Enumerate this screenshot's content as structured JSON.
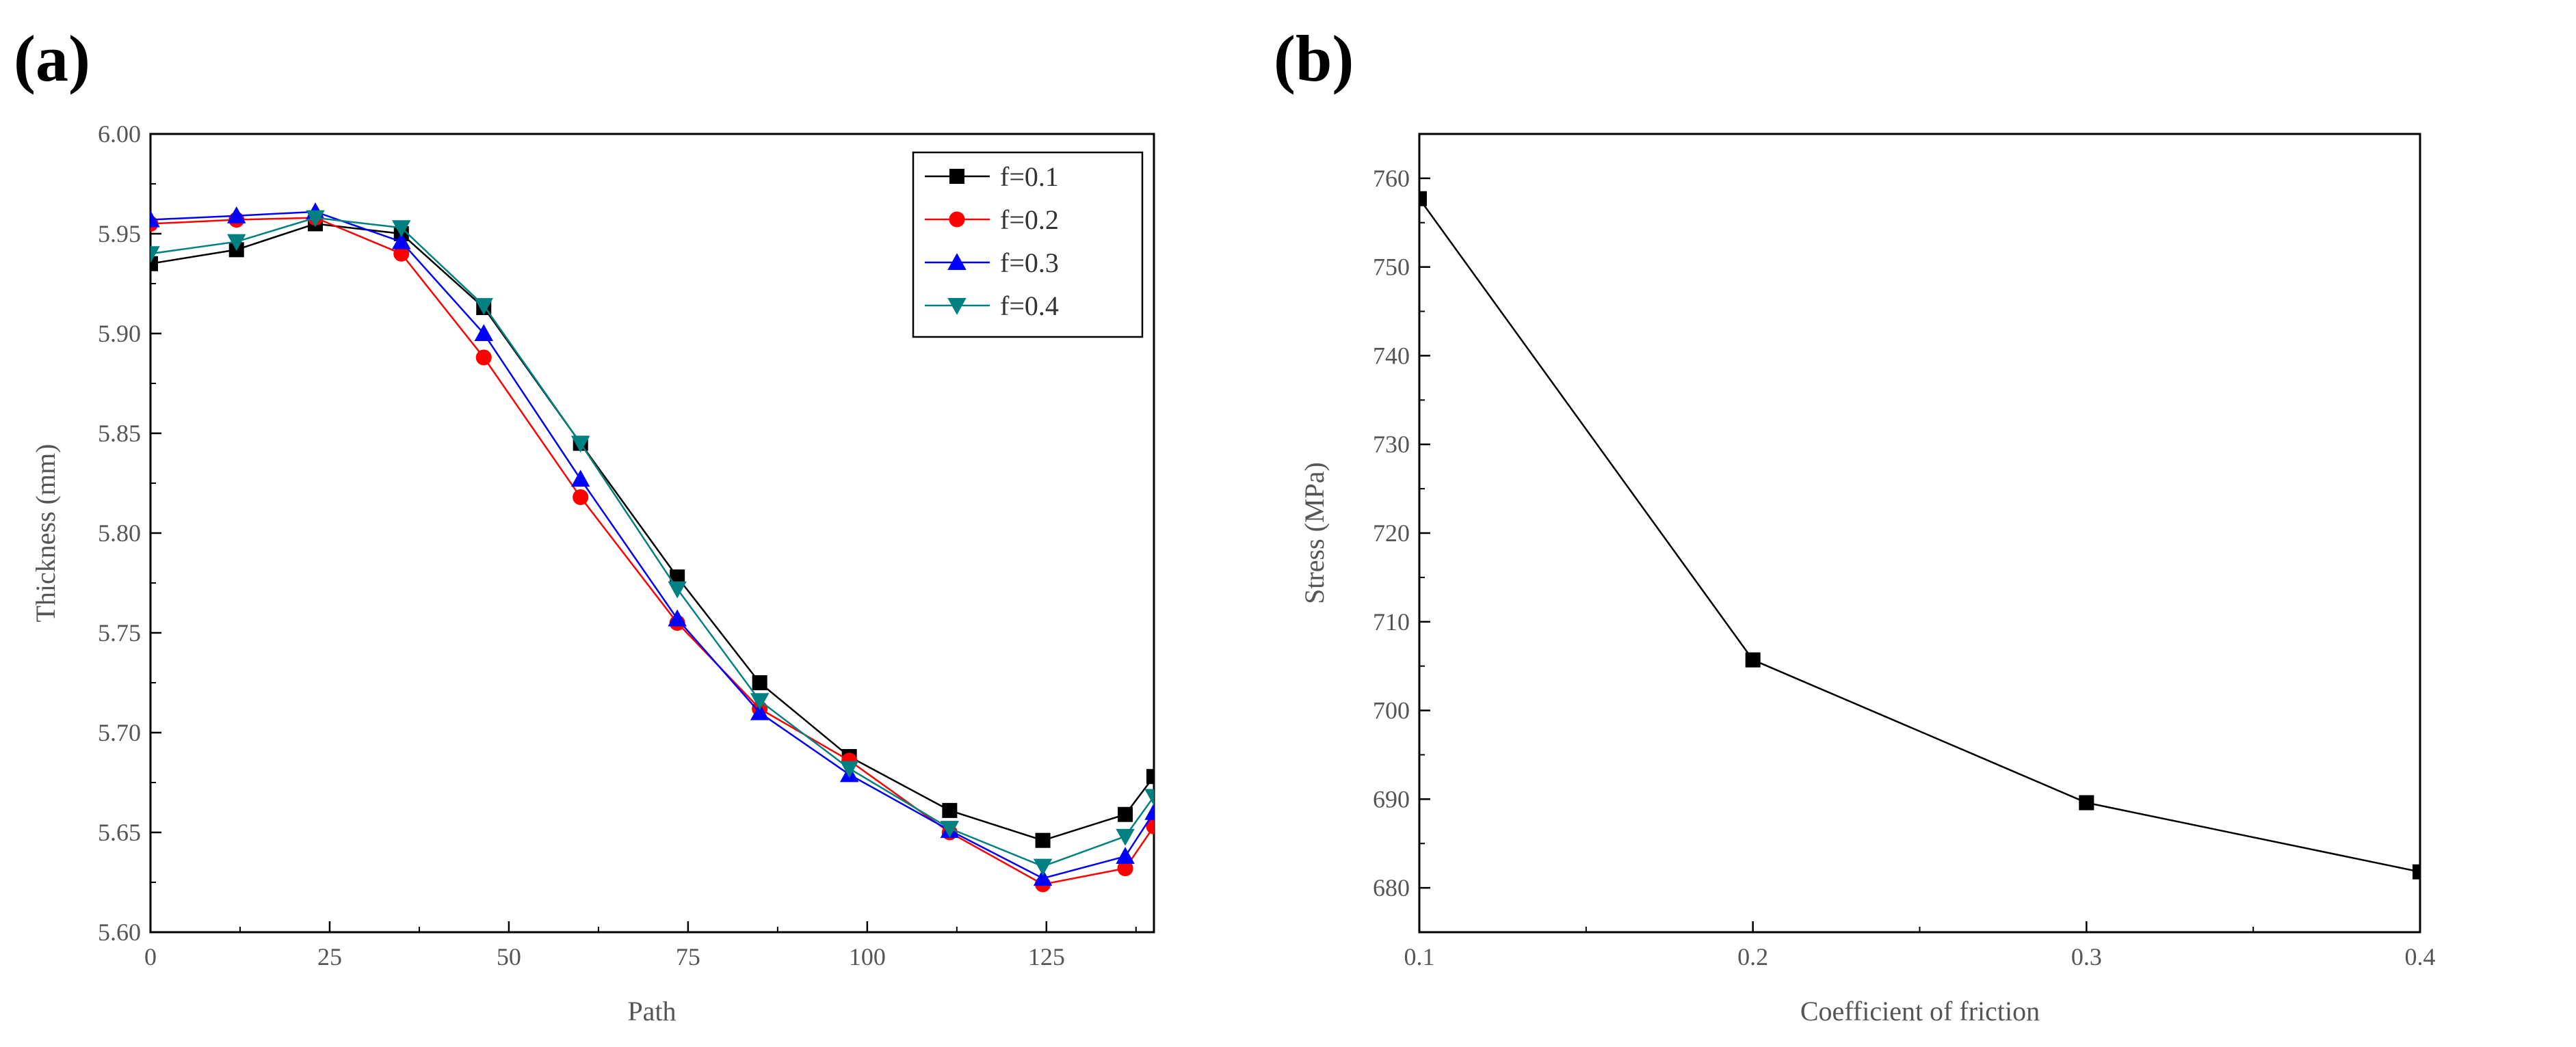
{
  "chart_data": [
    {
      "panel": "(a)",
      "type": "line",
      "title": "",
      "xlabel": "Path",
      "ylabel": "Thickness (mm)",
      "xlim": [
        0,
        140
      ],
      "ylim": [
        5.6,
        6.0
      ],
      "xticks": [
        0,
        25,
        50,
        75,
        100,
        125
      ],
      "xtick_labels": [
        "0",
        "25",
        "50",
        "75",
        "100",
        "125"
      ],
      "yticks": [
        5.6,
        5.65,
        5.7,
        5.75,
        5.8,
        5.85,
        5.9,
        5.95,
        6.0
      ],
      "ytick_labels": [
        "5.60",
        "5.65",
        "5.70",
        "5.75",
        "5.80",
        "5.85",
        "5.90",
        "5.95",
        "6.00"
      ],
      "legend_position": "top-right",
      "x": [
        0,
        12,
        23,
        35,
        46.5,
        60,
        73.5,
        85,
        97.5,
        111.5,
        124.5,
        136,
        140
      ],
      "series": [
        {
          "name": "f=0.1",
          "marker": "square",
          "color": "#000000",
          "values": [
            5.935,
            5.942,
            5.955,
            5.95,
            5.913,
            5.845,
            5.778,
            5.725,
            5.688,
            5.661,
            5.646,
            5.659,
            5.678
          ]
        },
        {
          "name": "f=0.2",
          "marker": "circle",
          "color": "#ff0000",
          "values": [
            5.955,
            5.957,
            5.958,
            5.94,
            5.888,
            5.818,
            5.755,
            5.712,
            5.686,
            5.65,
            5.624,
            5.632,
            5.653
          ]
        },
        {
          "name": "f=0.3",
          "marker": "triangle-up",
          "color": "#0000ff",
          "values": [
            5.957,
            5.959,
            5.961,
            5.946,
            5.9,
            5.827,
            5.757,
            5.71,
            5.679,
            5.651,
            5.627,
            5.638,
            5.66
          ]
        },
        {
          "name": "f=0.4",
          "marker": "triangle-down",
          "color": "#008080",
          "values": [
            5.94,
            5.946,
            5.958,
            5.953,
            5.914,
            5.845,
            5.772,
            5.716,
            5.682,
            5.652,
            5.633,
            5.648,
            5.668
          ]
        }
      ]
    },
    {
      "panel": "(b)",
      "type": "line",
      "title": "",
      "xlabel": "Coefficient of friction",
      "ylabel": "Stress (MPa)",
      "xlim": [
        0.1,
        0.4
      ],
      "ylim": [
        675,
        765
      ],
      "xticks": [
        0.1,
        0.2,
        0.3,
        0.4
      ],
      "xtick_labels": [
        "0.1",
        "0.2",
        "0.3",
        "0.4"
      ],
      "yticks": [
        680,
        690,
        700,
        710,
        720,
        730,
        740,
        750,
        760
      ],
      "ytick_labels": [
        "680",
        "690",
        "700",
        "710",
        "720",
        "730",
        "740",
        "750",
        "760"
      ],
      "series": [
        {
          "name": "Stress",
          "marker": "square",
          "color": "#000000",
          "x": [
            0.1,
            0.2,
            0.3,
            0.4
          ],
          "values": [
            757.7,
            705.7,
            689.6,
            681.8
          ]
        }
      ]
    }
  ]
}
